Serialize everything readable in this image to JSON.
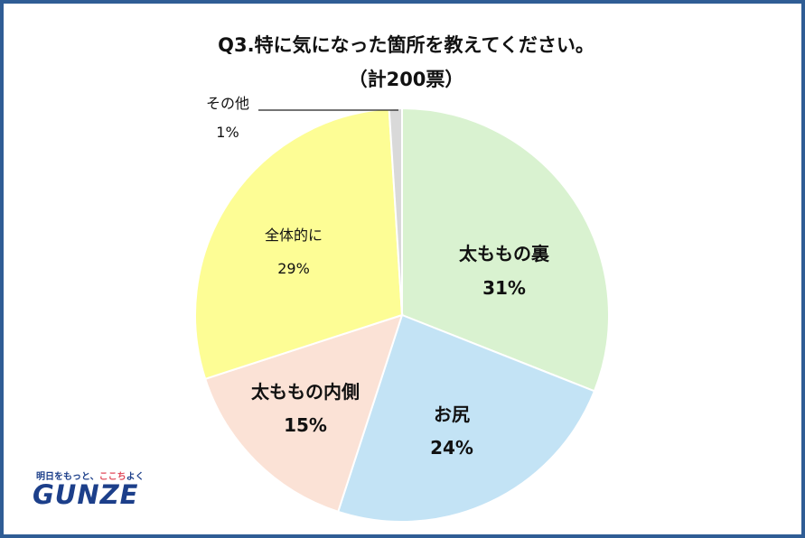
{
  "title": "Q3.特に気になった箇所を教えてください。",
  "subtitle": "（計200票）",
  "logo": {
    "tagline_pre": "明日をもっと、",
    "tagline_kokoro": "ここち",
    "tagline_post": "よく",
    "brand": "GUNZE"
  },
  "colors": {
    "frame": "#2f5d95",
    "slice_thigh_back": "#d9f2d0",
    "slice_buttocks": "#c3e3f5",
    "slice_inner_thigh": "#fbe2d6",
    "slice_overall": "#fdfd95",
    "slice_other": "#d9d9d9"
  },
  "chart_data": {
    "type": "pie",
    "title": "Q3.特に気になった箇所を教えてください。",
    "subtitle": "（計200票）",
    "slices": [
      {
        "label": "太ももの裏",
        "value": 31,
        "display": "31%"
      },
      {
        "label": "お尻",
        "value": 24,
        "display": "24%"
      },
      {
        "label": "太ももの内側",
        "value": 15,
        "display": "15%"
      },
      {
        "label": "全体的に",
        "value": 29,
        "display": "29%"
      },
      {
        "label": "その他",
        "value": 1,
        "display": "1%"
      }
    ]
  }
}
